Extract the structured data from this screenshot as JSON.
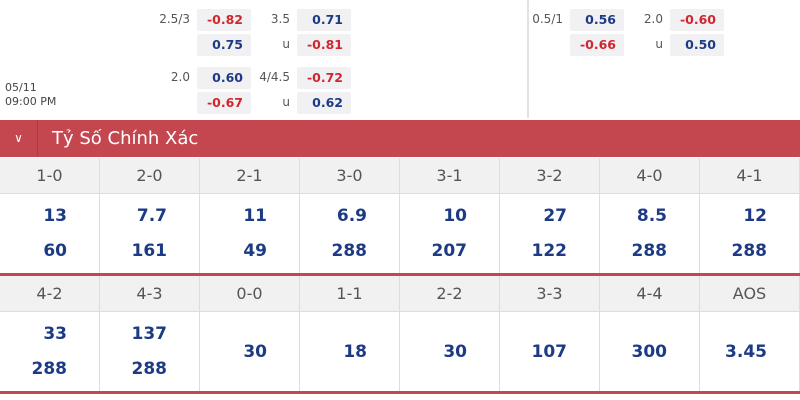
{
  "odds_left": [
    {
      "line1": "2.5/3",
      "v1": "-0.82",
      "v2": "0.75",
      "line2": "3.5",
      "v3": "0.71",
      "u": "u",
      "v4": "-0.81"
    },
    {
      "line1": "2.0",
      "v1": "0.60",
      "v2": "-0.67",
      "line2": "4/4.5",
      "v3": "-0.72",
      "u": "u",
      "v4": "0.62"
    }
  ],
  "odds_right": {
    "line1": "0.5/1",
    "v1": "0.56",
    "v2": "-0.66",
    "line2": "2.0",
    "v3": "-0.60",
    "u": "u",
    "v4": "0.50"
  },
  "match": {
    "date": "05/11",
    "time": "09:00 PM"
  },
  "section": {
    "title": "Tỷ Số Chính Xác",
    "icon": "chevron-down-icon",
    "color": "#c4474f"
  },
  "rows": [
    {
      "headers": [
        "1-0",
        "2-0",
        "2-1",
        "3-0",
        "3-1",
        "3-2",
        "4-0",
        "4-1"
      ],
      "values": [
        [
          "13",
          "60"
        ],
        [
          "7.7",
          "161"
        ],
        [
          "11",
          "49"
        ],
        [
          "6.9",
          "288"
        ],
        [
          "10",
          "207"
        ],
        [
          "27",
          "122"
        ],
        [
          "8.5",
          "288"
        ],
        [
          "12",
          "288"
        ]
      ]
    },
    {
      "headers": [
        "4-2",
        "4-3",
        "0-0",
        "1-1",
        "2-2",
        "3-3",
        "4-4",
        "AOS"
      ],
      "values": [
        [
          "33",
          "288"
        ],
        [
          "137",
          "288"
        ],
        [
          "30"
        ],
        [
          "18"
        ],
        [
          "30"
        ],
        [
          "107"
        ],
        [
          "300"
        ],
        [
          "3.45"
        ]
      ]
    }
  ]
}
